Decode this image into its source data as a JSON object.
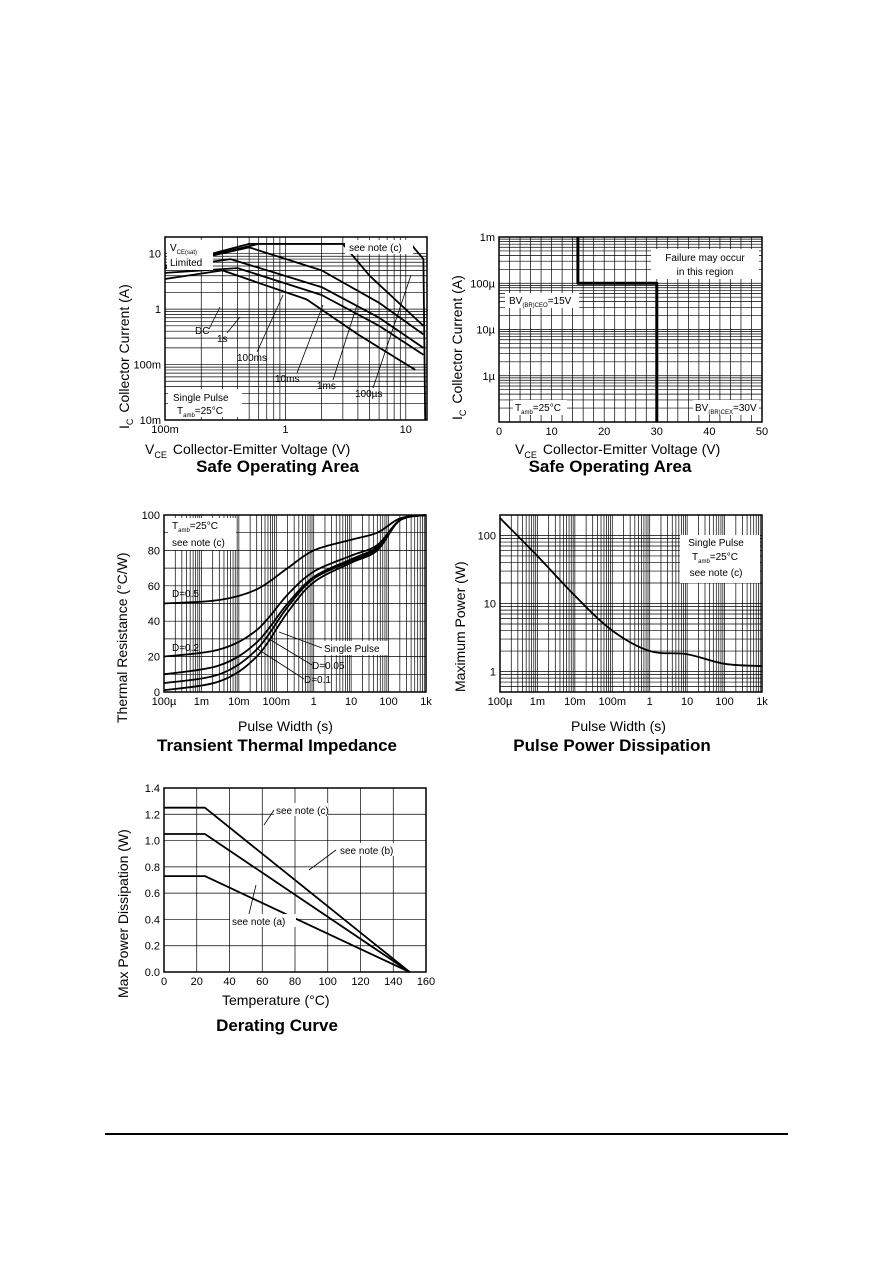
{
  "chart_data": [
    {
      "type": "line",
      "title": "Safe Operating Area",
      "xlabel": "V_CE  Collector-Emitter Voltage (V)",
      "ylabel": "I_C  Collector Current (A)",
      "x_scale": "log",
      "y_scale": "log",
      "xlim": [
        0.1,
        15
      ],
      "ylim": [
        0.01,
        20
      ],
      "x_ticks": [
        "100m",
        "1",
        "10"
      ],
      "y_ticks": [
        "10m",
        "100m",
        "1",
        "10"
      ],
      "series": [
        {
          "name": "DC",
          "x": [
            0.1,
            0.3,
            1.5,
            4,
            12
          ],
          "y": [
            3.5,
            5,
            1.5,
            0.35,
            0.08
          ]
        },
        {
          "name": "1s",
          "x": [
            0.1,
            0.4,
            2,
            6,
            14
          ],
          "y": [
            4.5,
            5.5,
            1.8,
            0.5,
            0.15
          ]
        },
        {
          "name": "100ms",
          "x": [
            0.1,
            0.35,
            2,
            6,
            14
          ],
          "y": [
            5.5,
            8,
            2.5,
            0.7,
            0.2
          ]
        },
        {
          "name": "10ms",
          "x": [
            0.1,
            0.5,
            2,
            6,
            14
          ],
          "y": [
            6,
            13,
            5,
            1.3,
            0.35
          ]
        },
        {
          "name": "1ms",
          "x": [
            0.1,
            0.6,
            3,
            5,
            14
          ],
          "y": [
            6,
            15,
            15,
            4,
            0.5
          ]
        },
        {
          "name": "100µs",
          "x": [
            0.1,
            0.5,
            11,
            14,
            14.5
          ],
          "y": [
            6,
            15,
            15,
            8,
            0.01
          ]
        }
      ],
      "annotations": [
        "V_CE(sat) Limited",
        "see note (c)",
        "DC",
        "1s",
        "100ms",
        "10ms",
        "1ms",
        "100µs",
        "Single Pulse",
        "T_amb=25°C"
      ]
    },
    {
      "type": "line",
      "title": "Safe Operating Area",
      "xlabel": "V_CE  Collector-Emitter Voltage (V)",
      "ylabel": "I_C  Collector Current (A)",
      "x_scale": "linear",
      "y_scale": "log",
      "xlim": [
        0,
        50
      ],
      "ylim": [
        1e-07,
        0.001
      ],
      "x_ticks": [
        "0",
        "10",
        "20",
        "30",
        "40",
        "50"
      ],
      "y_ticks": [
        "1µ",
        "10µ",
        "100µ",
        "1m"
      ],
      "series": [
        {
          "x": [
            15,
            15,
            30,
            30
          ],
          "y": [
            0.001,
            0.0001,
            0.0001,
            1e-07
          ]
        }
      ],
      "annotations": [
        "Failure may occur in this region",
        "BV_(BR)CEO=15V",
        "T_amb=25°C",
        "BV_(BR)CEX=30V"
      ]
    },
    {
      "type": "line",
      "title": "Transient Thermal Impedance",
      "xlabel": "Pulse Width (s)",
      "ylabel": "Thermal Resistance (°C/W)",
      "x_scale": "log",
      "y_scale": "linear",
      "xlim": [
        0.0001,
        1000
      ],
      "ylim": [
        0,
        100
      ],
      "x_ticks": [
        "100µ",
        "1m",
        "10m",
        "100m",
        "1",
        "10",
        "100",
        "1k"
      ],
      "y_ticks": [
        "0",
        "20",
        "40",
        "60",
        "80",
        "100"
      ],
      "series": [
        {
          "name": "D=0.5",
          "x": [
            0.0001,
            0.003,
            0.03,
            0.2,
            1,
            10,
            50,
            200,
            1000
          ],
          "y": [
            50,
            52,
            58,
            70,
            80,
            86,
            90,
            98,
            100
          ]
        },
        {
          "name": "D=0.2",
          "x": [
            0.0001,
            0.003,
            0.03,
            0.2,
            1,
            10,
            50,
            200,
            1000
          ],
          "y": [
            20,
            24,
            35,
            55,
            68,
            77,
            83,
            97,
            100
          ]
        },
        {
          "name": "D=0.1",
          "x": [
            0.0001,
            0.003,
            0.03,
            0.2,
            1,
            10,
            50,
            200,
            1000
          ],
          "y": [
            10,
            15,
            28,
            50,
            65,
            75,
            82,
            97,
            100
          ]
        },
        {
          "name": "D=0.05",
          "x": [
            0.0001,
            0.003,
            0.03,
            0.2,
            1,
            10,
            50,
            200,
            1000
          ],
          "y": [
            5,
            10,
            24,
            48,
            64,
            74,
            81,
            97,
            100
          ]
        },
        {
          "name": "Single Pulse",
          "x": [
            0.0001,
            0.003,
            0.03,
            0.2,
            1,
            10,
            50,
            200,
            1000
          ],
          "y": [
            1,
            6,
            20,
            45,
            62,
            73,
            80,
            97,
            100
          ]
        }
      ],
      "annotations": [
        "T_amb=25°C",
        "see note (c)",
        "D=0.5",
        "D=0.2",
        "Single Pulse",
        "D=0.05",
        "D=0.1"
      ]
    },
    {
      "type": "line",
      "title": "Pulse Power Dissipation",
      "xlabel": "Pulse Width (s)",
      "ylabel": "Maximum Power (W)",
      "x_scale": "log",
      "y_scale": "log",
      "xlim": [
        0.0001,
        1000
      ],
      "ylim": [
        0.5,
        200
      ],
      "x_ticks": [
        "100µ",
        "1m",
        "10m",
        "100m",
        "1",
        "10",
        "100",
        "1k"
      ],
      "y_ticks": [
        "1",
        "10",
        "100"
      ],
      "series": [
        {
          "x": [
            0.0001,
            0.001,
            0.01,
            0.1,
            1,
            10,
            100,
            1000
          ],
          "y": [
            180,
            50,
            13,
            4,
            2,
            1.8,
            1.3,
            1.2
          ]
        }
      ],
      "annotations": [
        "Single Pulse",
        "T_amb=25°C",
        "see note (c)"
      ]
    },
    {
      "type": "line",
      "title": "Derating Curve",
      "xlabel": "Temperature (°C)",
      "ylabel": "Max Power Dissipation (W)",
      "xlim": [
        0,
        160
      ],
      "ylim": [
        0,
        1.4
      ],
      "x_ticks": [
        "0",
        "20",
        "40",
        "60",
        "80",
        "100",
        "120",
        "140",
        "160"
      ],
      "y_ticks": [
        "0.0",
        "0.2",
        "0.4",
        "0.6",
        "0.8",
        "1.0",
        "1.2",
        "1.4"
      ],
      "series": [
        {
          "name": "see note (c)",
          "x": [
            0,
            25,
            150
          ],
          "y": [
            1.25,
            1.25,
            0
          ]
        },
        {
          "name": "see note (b)",
          "x": [
            0,
            25,
            150
          ],
          "y": [
            1.05,
            1.05,
            0
          ]
        },
        {
          "name": "see note (a)",
          "x": [
            0,
            25,
            150
          ],
          "y": [
            0.73,
            0.73,
            0
          ]
        }
      ],
      "annotations": [
        "see note (c)",
        "see note (b)",
        "see note (a)"
      ]
    }
  ],
  "text": {
    "c1": {
      "title": "Safe Operating Area",
      "xlabel_a": "V",
      "xlabel_sub": "CE",
      "xlabel_b": "Collector-Emitter Voltage (V)",
      "ylabel_a": "I",
      "ylabel_sub": "C",
      "ylabel_b": "Collector Current (A)",
      "vsat_a": "V",
      "vsat_sub": "CE(sat)",
      "limited": "Limited",
      "note": "see note (c)",
      "dc": "DC",
      "s1": "1s",
      "ms100": "100ms",
      "ms10": "10ms",
      "ms1": "1ms",
      "us100": "100µs",
      "pulse": "Single Pulse",
      "tamb_a": "T",
      "tamb_sub": "amb",
      "tamb_b": "=25°C"
    },
    "c2": {
      "title": "Safe Operating Area",
      "xlabel_a": "V",
      "xlabel_sub": "CE",
      "xlabel_b": "Collector-Emitter Voltage (V)",
      "ylabel_a": "I",
      "ylabel_sub": "C",
      "ylabel_b": "Collector Current (A)",
      "fail1": "Failure may occur",
      "fail2": "in this region",
      "bv1_a": "BV",
      "bv1_sub": "(BR)CEO",
      "bv1_b": "=15V",
      "tamb_a": "T",
      "tamb_sub": "amb",
      "tamb_b": "=25°C",
      "bv2_a": "BV",
      "bv2_sub": "(BR)CEX",
      "bv2_b": "=30V"
    },
    "c3": {
      "title": "Transient Thermal Impedance",
      "xlabel": "Pulse Width (s)",
      "ylabel": "Thermal Resistance (°C/W)",
      "tamb_a": "T",
      "tamb_sub": "amb",
      "tamb_b": "=25°C",
      "note": "see note (c)",
      "d05": "D=0.5",
      "d02": "D=0.2",
      "single": "Single Pulse",
      "d005": "D=0.05",
      "d01": "D=0.1"
    },
    "c4": {
      "title": "Pulse Power Dissipation",
      "xlabel": "Pulse Width (s)",
      "ylabel": "Maximum Power (W)",
      "pulse": "Single Pulse",
      "tamb_a": "T",
      "tamb_sub": "amb",
      "tamb_b": "=25°C",
      "note": "see note (c)"
    },
    "c5": {
      "title": "Derating Curve",
      "xlabel": "Temperature (°C)",
      "ylabel": "Max Power Dissipation (W)",
      "nc": "see note (c)",
      "nb": "see note (b)",
      "na": "see note (a)"
    }
  }
}
